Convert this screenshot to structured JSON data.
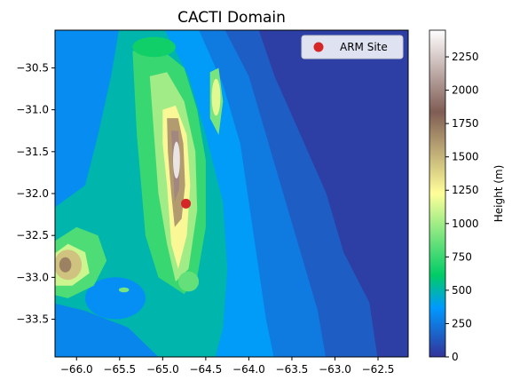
{
  "chart_data": {
    "type": "heatmap",
    "title": "CACTI Domain",
    "xlabel": "",
    "ylabel": "",
    "xlim": [
      -66.25,
      -62.15
    ],
    "ylim": [
      -33.95,
      -30.05
    ],
    "x_ticks": [
      {
        "value": -66.0,
        "label": "−66.0"
      },
      {
        "value": -65.5,
        "label": "−65.5"
      },
      {
        "value": -65.0,
        "label": "−65.0"
      },
      {
        "value": -64.5,
        "label": "−64.5"
      },
      {
        "value": -64.0,
        "label": "−64.0"
      },
      {
        "value": -63.5,
        "label": "−63.5"
      },
      {
        "value": -63.0,
        "label": "−63.0"
      },
      {
        "value": -62.5,
        "label": "−62.5"
      }
    ],
    "y_ticks": [
      {
        "value": -30.5,
        "label": "−30.5"
      },
      {
        "value": -31.0,
        "label": "−31.0"
      },
      {
        "value": -31.5,
        "label": "−31.5"
      },
      {
        "value": -32.0,
        "label": "−32.0"
      },
      {
        "value": -32.5,
        "label": "−32.5"
      },
      {
        "value": -33.0,
        "label": "−33.0"
      },
      {
        "value": -33.5,
        "label": "−33.5"
      }
    ],
    "colorbar": {
      "label": "Height (m)",
      "range": [
        0,
        2450
      ],
      "colormap": "terrain",
      "ticks": [
        {
          "value": 0,
          "label": "0"
        },
        {
          "value": 250,
          "label": "250"
        },
        {
          "value": 500,
          "label": "500"
        },
        {
          "value": 750,
          "label": "750"
        },
        {
          "value": 1000,
          "label": "1000"
        },
        {
          "value": 1250,
          "label": "1250"
        },
        {
          "value": 1500,
          "label": "1500"
        },
        {
          "value": 1750,
          "label": "1750"
        },
        {
          "value": 2000,
          "label": "2000"
        },
        {
          "value": 2250,
          "label": "2250"
        }
      ]
    },
    "marker": {
      "label": "ARM Site",
      "lon": -64.73,
      "lat": -32.12,
      "color": "#d62728"
    },
    "legend": {
      "position": "upper right",
      "entries": [
        "ARM Site"
      ]
    },
    "grid": false
  }
}
